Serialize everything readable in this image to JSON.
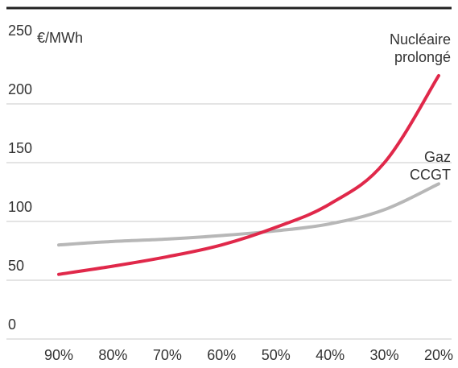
{
  "chart_data": {
    "type": "line",
    "title": "",
    "xlabel": "",
    "ylabel": "",
    "y_unit": "€/MWh",
    "ylim": [
      0,
      250
    ],
    "ytick_values": [
      0,
      50,
      100,
      150,
      200,
      250
    ],
    "ytick_labels": [
      "0",
      "50",
      "100",
      "150",
      "200",
      "250"
    ],
    "x": [
      "90%",
      "80%",
      "70%",
      "60%",
      "50%",
      "40%",
      "30%",
      "20%"
    ],
    "series": [
      {
        "name": "Nucléaire prolongé",
        "label_lines": [
          "Nucléaire",
          "prolongé"
        ],
        "color": "#e0284a",
        "values": [
          55,
          62,
          70,
          80,
          95,
          115,
          150,
          224
        ]
      },
      {
        "name": "Gaz CCGT",
        "label_lines": [
          "Gaz",
          "CCGT"
        ],
        "color": "#b7b7b7",
        "values": [
          80,
          83,
          85,
          88,
          92,
          98,
          110,
          132
        ]
      }
    ],
    "grid": true,
    "legend": "inline-right"
  },
  "colors": {
    "grid": "#c8c8c8",
    "top_rule": "#222222",
    "text": "#333333"
  }
}
